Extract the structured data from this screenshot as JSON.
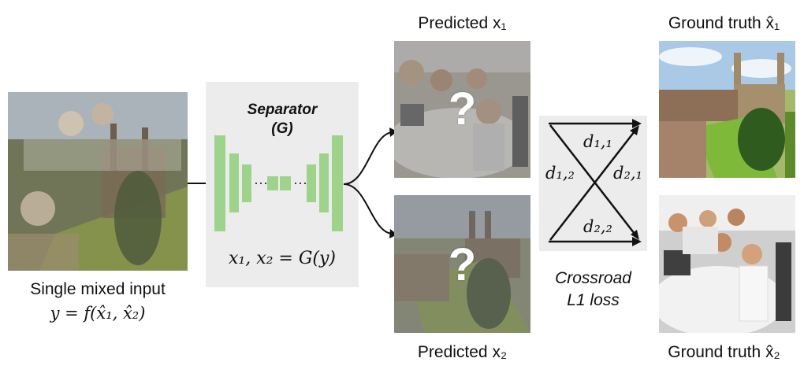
{
  "input": {
    "caption_line1": "Single mixed input",
    "caption_line2": "y = f(x̂₁, x̂₂)"
  },
  "separator": {
    "title_line1": "Separator",
    "title_line2": "(G)",
    "equation": "x₁, x₂ = G(y)",
    "dots_left": "···",
    "dots_right": "···"
  },
  "predicted": {
    "top_label": "Predicted x₁",
    "bottom_label": "Predicted x₂",
    "unknown_mark": "?"
  },
  "loss": {
    "d11": "d₁,₁",
    "d12": "d₁,₂",
    "d21": "d₂,₁",
    "d22": "d₂,₂",
    "title_line1": "Crossroad",
    "title_line2": "L1 loss"
  },
  "ground_truth": {
    "top_label": "Ground truth x̂₁",
    "bottom_label": "Ground truth x̂₂"
  },
  "colors": {
    "bar_green": "#9ed38c",
    "panel_gray": "#ececec"
  }
}
